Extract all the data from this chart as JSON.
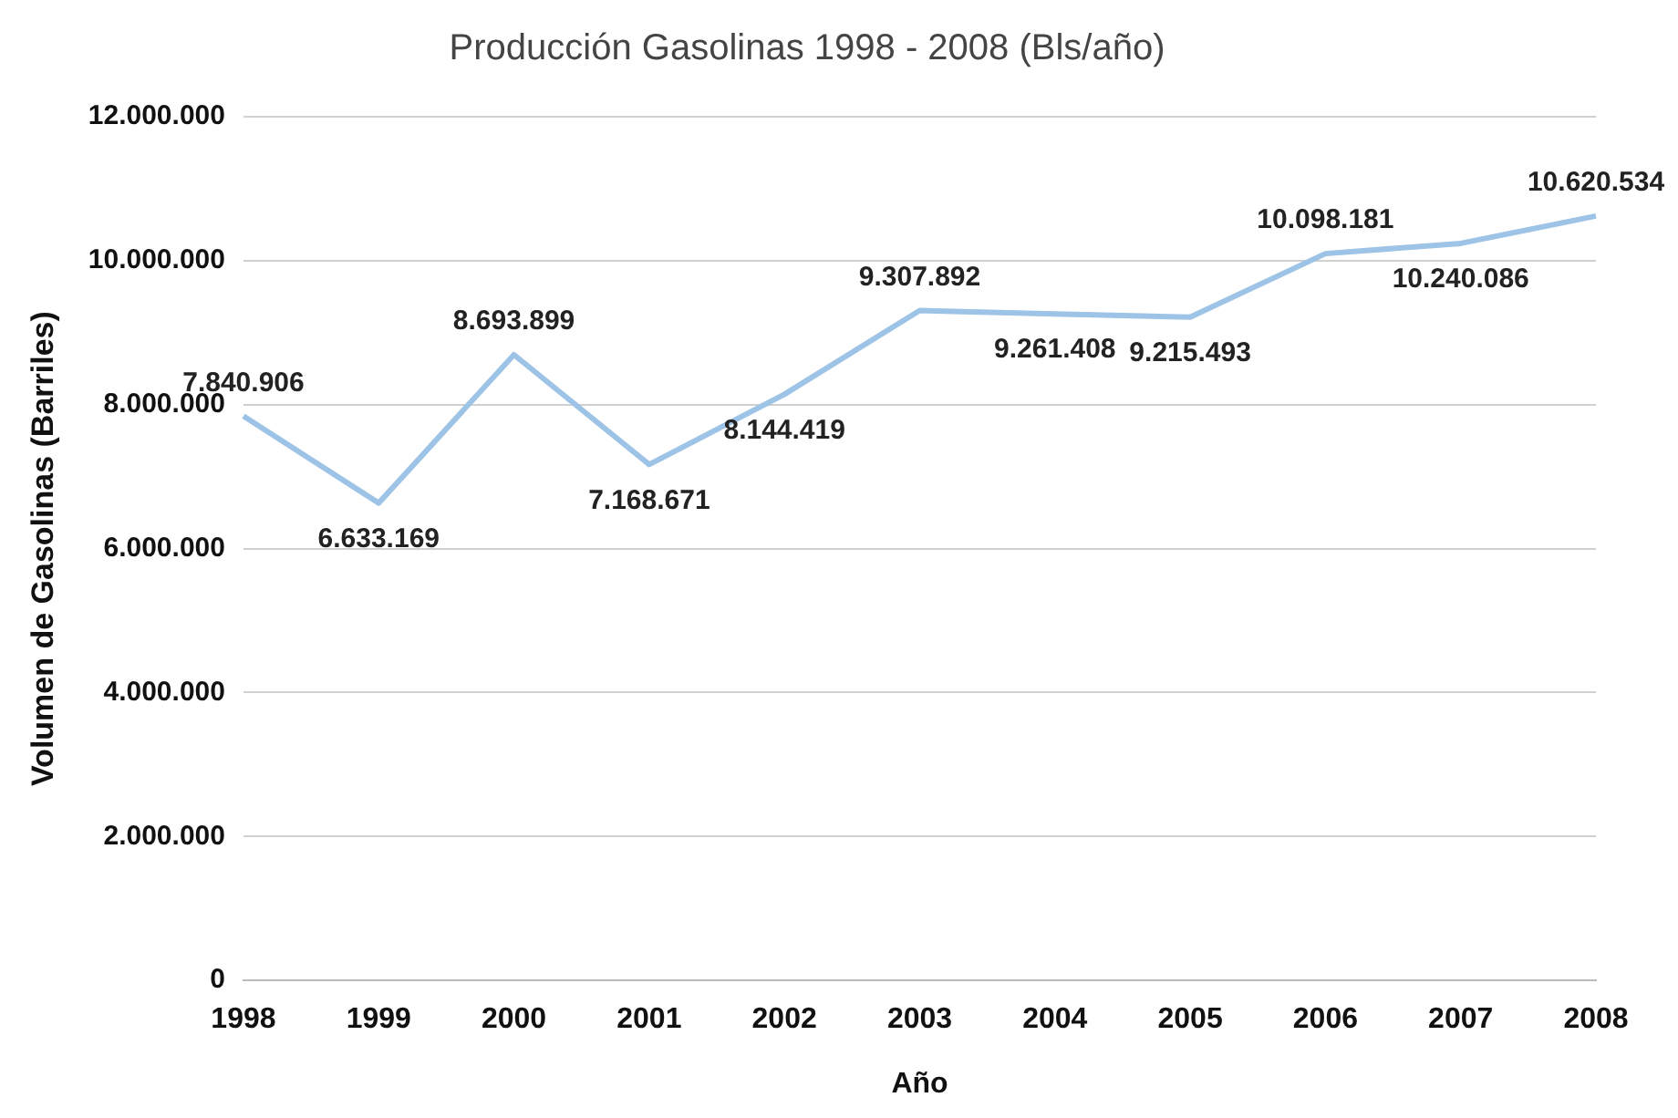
{
  "chart_data": {
    "type": "line",
    "title": "Producción Gasolinas 1998 - 2008 (Bls/año)",
    "xlabel": "Año",
    "ylabel": "Volumen de Gasolinas (Barriles)",
    "categories": [
      "1998",
      "1999",
      "2000",
      "2001",
      "2002",
      "2003",
      "2004",
      "2005",
      "2006",
      "2007",
      "2008"
    ],
    "series": [
      {
        "color": "#9dc3e6",
        "values": [
          7840906,
          6633169,
          8693899,
          7168671,
          8144419,
          9307892,
          9261408,
          9215493,
          10098181,
          10240086,
          10620534
        ],
        "value_labels": [
          "7.840.906",
          "6.633.169",
          "8.693.899",
          "7.168.671",
          "8.144.419",
          "9.307.892",
          "9.261.408",
          "9.215.493",
          "10.098.181",
          "10.240.086",
          "10.620.534"
        ]
      }
    ],
    "ylim": [
      0,
      12000000
    ],
    "yticks": [
      {
        "value": 0,
        "label": "0"
      },
      {
        "value": 2000000,
        "label": "2.000.000"
      },
      {
        "value": 4000000,
        "label": "4.000.000"
      },
      {
        "value": 6000000,
        "label": "6.000.000"
      },
      {
        "value": 8000000,
        "label": "8.000.000"
      },
      {
        "value": 10000000,
        "label": "10.000.000"
      },
      {
        "value": 12000000,
        "label": "12.000.000"
      }
    ],
    "grid": "y",
    "legend": false,
    "marker": "none",
    "line_style": "solid"
  }
}
